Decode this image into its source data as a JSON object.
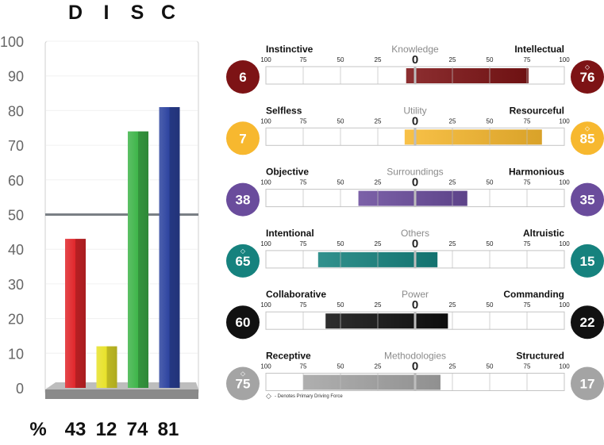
{
  "chart_data": [
    {
      "type": "bar",
      "categories": [
        "D",
        "I",
        "S",
        "C"
      ],
      "values": [
        43,
        12,
        74,
        81
      ],
      "colors": [
        "#e0262b",
        "#e8e22a",
        "#3fb54a",
        "#2d44a0"
      ],
      "ylim": [
        0,
        100
      ],
      "yticks": [
        "0",
        "10",
        "20",
        "30",
        "40",
        "50",
        "60",
        "70",
        "80",
        "90",
        "100"
      ],
      "reference_line": 50,
      "percent_label": "%",
      "percent_values": [
        "43",
        "12",
        "74",
        "81"
      ]
    },
    {
      "type": "bar",
      "subtype": "diverging",
      "xlim": [
        -100,
        100
      ],
      "axis_labels": [
        "100",
        "75",
        "50",
        "25",
        "0",
        "25",
        "50",
        "75",
        "100"
      ],
      "footnote_symbol": "◇",
      "footnote": "- Denotes Primary Driving Force",
      "rows": [
        {
          "title": "Knowledge",
          "left_label": "Instinctive",
          "right_label": "Intellectual",
          "left_value": 6,
          "right_value": 76,
          "left_score": "6",
          "right_score": "76",
          "primary_side": "right",
          "color": "#7d1315"
        },
        {
          "title": "Utility",
          "left_label": "Selfless",
          "right_label": "Resourceful",
          "left_value": 7,
          "right_value": 85,
          "left_score": "7",
          "right_score": "85",
          "primary_side": "right",
          "color": "#f7b82f"
        },
        {
          "title": "Surroundings",
          "left_label": "Objective",
          "right_label": "Harmonious",
          "left_value": 38,
          "right_value": 35,
          "left_score": "38",
          "right_score": "35",
          "primary_side": "none",
          "color": "#6a4c9c"
        },
        {
          "title": "Others",
          "left_label": "Intentional",
          "right_label": "Altruistic",
          "left_value": 65,
          "right_value": 15,
          "left_score": "65",
          "right_score": "15",
          "primary_side": "left",
          "color": "#16827e"
        },
        {
          "title": "Power",
          "left_label": "Collaborative",
          "right_label": "Commanding",
          "left_value": 60,
          "right_value": 22,
          "left_score": "60",
          "right_score": "22",
          "primary_side": "none",
          "color": "#111111"
        },
        {
          "title": "Methodologies",
          "left_label": "Receptive",
          "right_label": "Structured",
          "left_value": 75,
          "right_value": 17,
          "left_score": "75",
          "right_score": "17",
          "primary_side": "left",
          "color": "#a4a4a4"
        }
      ]
    }
  ]
}
